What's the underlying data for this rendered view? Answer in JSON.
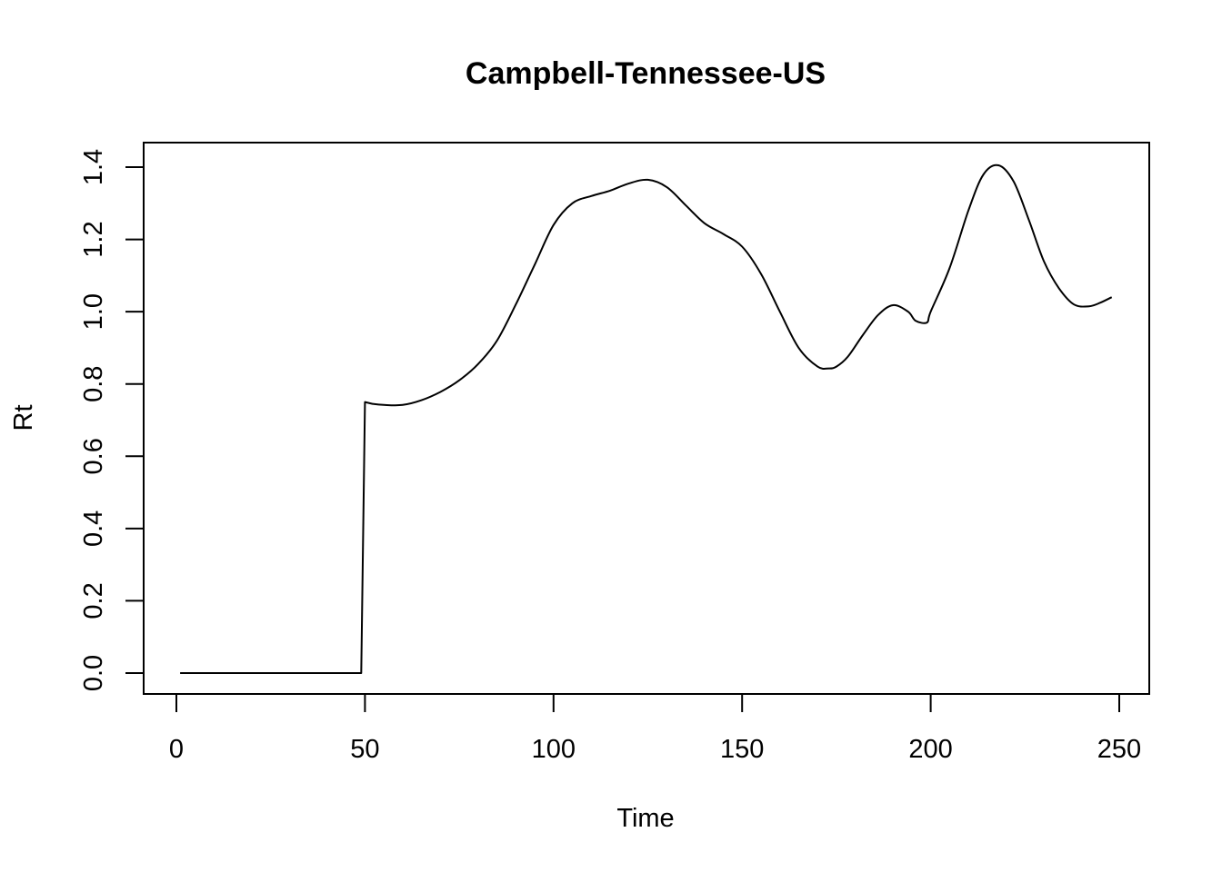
{
  "chart_data": {
    "type": "line",
    "title": "Campbell-Tennessee-US",
    "xlabel": "Time",
    "ylabel": "Rt",
    "xlim": [
      0,
      250
    ],
    "ylim": [
      0,
      1.4
    ],
    "xticks": [
      0,
      50,
      100,
      150,
      200,
      250
    ],
    "yticks": [
      0.0,
      0.2,
      0.4,
      0.6,
      0.8,
      1.0,
      1.2,
      1.4
    ],
    "xtick_labels": [
      "0",
      "50",
      "100",
      "150",
      "200",
      "250"
    ],
    "ytick_labels": [
      "0.0",
      "0.2",
      "0.4",
      "0.6",
      "0.8",
      "1.0",
      "1.2",
      "1.4"
    ],
    "grid": false,
    "series": [
      {
        "color": "#000000",
        "x": [
          1,
          10,
          20,
          30,
          40,
          49,
          50,
          52,
          55,
          60,
          65,
          70,
          75,
          80,
          85,
          90,
          95,
          100,
          105,
          110,
          115,
          120,
          125,
          130,
          135,
          140,
          145,
          150,
          155,
          160,
          165,
          170,
          173,
          175,
          178,
          182,
          186,
          190,
          194,
          196,
          199,
          200,
          205,
          210,
          214,
          218,
          222,
          226,
          230,
          234,
          238,
          242,
          245,
          248
        ],
        "y": [
          0,
          0,
          0,
          0,
          0,
          0,
          0.75,
          0.745,
          0.742,
          0.742,
          0.755,
          0.778,
          0.81,
          0.855,
          0.92,
          1.02,
          1.13,
          1.24,
          1.3,
          1.32,
          1.335,
          1.355,
          1.365,
          1.345,
          1.295,
          1.245,
          1.215,
          1.18,
          1.105,
          1.0,
          0.9,
          0.848,
          0.843,
          0.848,
          0.875,
          0.935,
          0.99,
          1.018,
          1.0,
          0.975,
          0.97,
          1.0,
          1.12,
          1.28,
          1.38,
          1.405,
          1.36,
          1.255,
          1.14,
          1.065,
          1.02,
          1.015,
          1.025,
          1.04
        ]
      }
    ]
  }
}
